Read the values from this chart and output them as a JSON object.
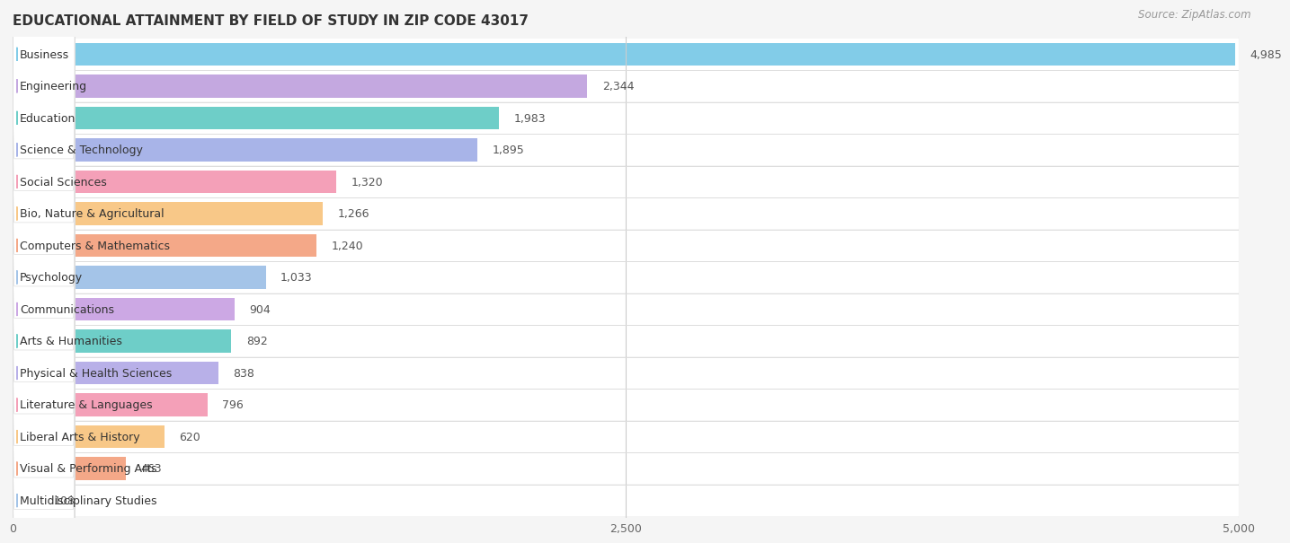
{
  "title": "EDUCATIONAL ATTAINMENT BY FIELD OF STUDY IN ZIP CODE 43017",
  "source": "Source: ZipAtlas.com",
  "categories": [
    "Business",
    "Engineering",
    "Education",
    "Science & Technology",
    "Social Sciences",
    "Bio, Nature & Agricultural",
    "Computers & Mathematics",
    "Psychology",
    "Communications",
    "Arts & Humanities",
    "Physical & Health Sciences",
    "Literature & Languages",
    "Liberal Arts & History",
    "Visual & Performing Arts",
    "Multidisciplinary Studies"
  ],
  "values": [
    4985,
    2344,
    1983,
    1895,
    1320,
    1266,
    1240,
    1033,
    904,
    892,
    838,
    796,
    620,
    463,
    108
  ],
  "bar_colors": [
    "#82cce8",
    "#c4a8e0",
    "#6ecec8",
    "#a8b4e8",
    "#f4a0b8",
    "#f8c888",
    "#f4a888",
    "#a4c4e8",
    "#cca8e4",
    "#6ecec8",
    "#b8b0e8",
    "#f4a0b8",
    "#f8c888",
    "#f4a888",
    "#a4c4e8"
  ],
  "dot_colors": [
    "#82cce8",
    "#c4a8e0",
    "#6ecec8",
    "#a8b4e8",
    "#f4a0b8",
    "#f8c888",
    "#f4a888",
    "#a4c4e8",
    "#cca8e4",
    "#6ecec8",
    "#b8b0e8",
    "#f4a0b8",
    "#f8c888",
    "#f4a888",
    "#a4c4e8"
  ],
  "xlim": [
    0,
    5000
  ],
  "xticks": [
    0,
    2500,
    5000
  ],
  "background_color": "#f5f5f5",
  "row_bg_color": "#ffffff",
  "title_fontsize": 11,
  "label_fontsize": 9,
  "value_fontsize": 9,
  "source_fontsize": 8.5
}
